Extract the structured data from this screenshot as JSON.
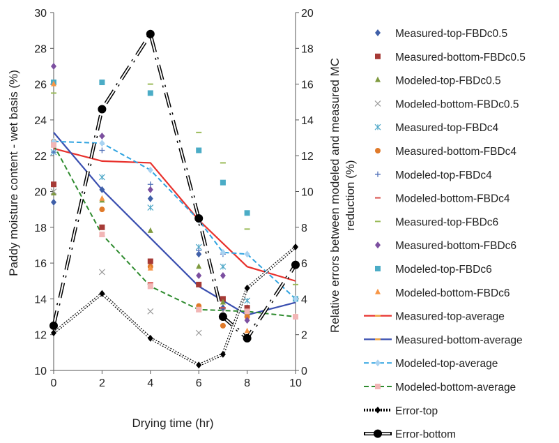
{
  "chart_data": {
    "type": "scatter",
    "xlabel": "Drying time (hr)",
    "ylabel": "Paddy moisture content - wet basis (%)",
    "y2label_lines": [
      "Relative errors between modeled and measured MC",
      "reduction (%)"
    ],
    "xlim": [
      0,
      10
    ],
    "ylim": [
      10,
      30
    ],
    "y2lim": [
      0,
      20
    ],
    "xticks": [
      "0",
      "2",
      "4",
      "6",
      "8",
      "10"
    ],
    "yticks": [
      "10",
      "12",
      "14",
      "16",
      "18",
      "20",
      "22",
      "24",
      "26",
      "28",
      "30"
    ],
    "y2ticks": [
      "0",
      "2",
      "4",
      "6",
      "8",
      "10",
      "12",
      "14",
      "16",
      "18",
      "20"
    ],
    "grid": false,
    "legend_position": "right",
    "series": [
      {
        "name": "Measured-top-FBDc0.5",
        "marker": "diamond",
        "color": "#3f5fa8",
        "x": [
          0,
          2,
          4,
          6,
          7,
          8
        ],
        "y": [
          19.4,
          20.1,
          19.6,
          16.5,
          13.5,
          13.5
        ]
      },
      {
        "name": "Measured-bottom-FBDc0.5",
        "marker": "square",
        "color": "#a63a36",
        "x": [
          0,
          2,
          4,
          6,
          7,
          8
        ],
        "y": [
          20.4,
          18.0,
          16.1,
          14.8,
          14.0,
          13.5
        ]
      },
      {
        "name": "Modeled-top-FBDc0.5",
        "marker": "triangle",
        "color": "#7f9a3f",
        "x": [
          0,
          2,
          4,
          6,
          7,
          8
        ],
        "y": [
          19.9,
          19.5,
          17.8,
          15.8,
          13.8,
          13.2
        ]
      },
      {
        "name": "Modeled-bottom-FBDc0.5",
        "marker": "x",
        "color": "#9a9a9a",
        "x": [
          0,
          2,
          4,
          6,
          7
        ],
        "y": [
          20.0,
          15.5,
          13.3,
          12.1,
          13.3
        ]
      },
      {
        "name": "Measured-top-FBDc4",
        "marker": "asterisk",
        "color": "#4fa8c8",
        "x": [
          0,
          2,
          4,
          6,
          7,
          8
        ],
        "y": [
          22.2,
          20.8,
          19.1,
          16.9,
          15.8,
          13.9
        ]
      },
      {
        "name": "Measured-bottom-FBDc4",
        "marker": "circle",
        "color": "#e07a2a",
        "x": [
          0,
          2,
          4,
          6,
          7,
          8
        ],
        "y": [
          22.8,
          19.0,
          15.8,
          13.6,
          12.5,
          13.0
        ]
      },
      {
        "name": "Modeled-top-FBDc4",
        "marker": "plus",
        "color": "#4f6fb8",
        "x": [
          0,
          2,
          4,
          6,
          7
        ],
        "y": [
          22.2,
          22.3,
          20.4,
          16.7,
          16.5
        ]
      },
      {
        "name": "Modeled-bottom-FBDc4",
        "marker": "dash",
        "color": "#d9534f",
        "x": [
          0,
          2,
          4,
          6,
          7
        ],
        "y": [
          22.8,
          17.5,
          14.9,
          13.5,
          13.5
        ]
      },
      {
        "name": "Measured-top-FBDc6",
        "marker": "dash",
        "color": "#9bbb59",
        "x": [
          0,
          2,
          4,
          6,
          7,
          8,
          10
        ],
        "y": [
          25.5,
          23.1,
          26.0,
          23.3,
          21.6,
          17.9,
          14.8
        ]
      },
      {
        "name": "Measured-bottom-FBDc6",
        "marker": "diamond",
        "color": "#7c4fa0",
        "x": [
          0,
          2,
          4,
          6,
          7,
          8
        ],
        "y": [
          27.0,
          23.1,
          20.1,
          15.3,
          15.3,
          12.8
        ]
      },
      {
        "name": "Modeled-top-FBDc6",
        "marker": "square",
        "color": "#4bacc6",
        "x": [
          0,
          2,
          4,
          6,
          7,
          8,
          10
        ],
        "y": [
          26.1,
          26.1,
          25.5,
          22.3,
          20.5,
          18.8,
          14.0
        ]
      },
      {
        "name": "Modeled-bottom-FBDc6",
        "marker": "triangle",
        "color": "#f79646",
        "x": [
          0,
          2,
          4,
          6,
          7,
          8,
          10
        ],
        "y": [
          26.0,
          19.6,
          15.7,
          13.4,
          13.0,
          12.2,
          13.0
        ]
      },
      {
        "name": "Measured-top-average",
        "marker": "line",
        "color": "#e8312c",
        "x": [
          0,
          2,
          4,
          6,
          8,
          10
        ],
        "y": [
          22.4,
          21.7,
          21.6,
          18.4,
          15.8,
          15.0
        ]
      },
      {
        "name": "Measured-bottom-average",
        "marker": "line",
        "color": "#3a4fb0",
        "x": [
          0,
          2,
          4,
          6,
          8,
          10
        ],
        "y": [
          23.3,
          20.1,
          17.4,
          14.7,
          13.1,
          13.8
        ]
      },
      {
        "name": "Modeled-top-average",
        "marker": "dashed-line-diamond",
        "color": "#2fa3e0",
        "x": [
          0,
          2,
          4,
          6,
          7,
          8,
          10
        ],
        "y": [
          22.8,
          22.7,
          21.2,
          18.4,
          16.6,
          16.5,
          14.0
        ]
      },
      {
        "name": "Modeled-bottom-average",
        "marker": "dashed-line-square",
        "color": "#2e8b2e",
        "x": [
          0,
          2,
          4,
          6,
          8,
          10
        ],
        "y": [
          22.6,
          17.6,
          14.7,
          13.4,
          13.3,
          13.0
        ]
      },
      {
        "name": "Error-top",
        "marker": "double-dotted-line-diamond",
        "color": "#000000",
        "axis": "right",
        "x": [
          0,
          2,
          4,
          6,
          7,
          8,
          10
        ],
        "y": [
          2.1,
          4.3,
          1.8,
          0.3,
          0.9,
          4.6,
          6.9
        ]
      },
      {
        "name": "Error-bottom",
        "marker": "double-dashdot-line-circle",
        "color": "#000000",
        "axis": "right",
        "x": [
          0,
          2,
          4,
          6,
          7,
          8,
          10
        ],
        "y": [
          2.5,
          14.6,
          18.8,
          8.5,
          3.0,
          1.8,
          5.9
        ]
      }
    ]
  }
}
